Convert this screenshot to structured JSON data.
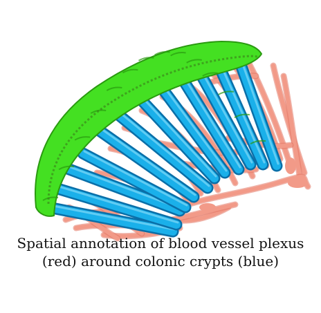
{
  "caption": {
    "line1": "Spatial annotation of blood vessel plexus",
    "line2": "(red) around colonic crypts (blue)"
  },
  "colors": {
    "surface": "#44e022",
    "surface_dark": "#2a9a10",
    "vessel": "#f29a88",
    "vessel_dark": "#e27562",
    "crypt": "#1ab0ea",
    "crypt_dark": "#0a6fa8",
    "background": "#ffffff"
  }
}
